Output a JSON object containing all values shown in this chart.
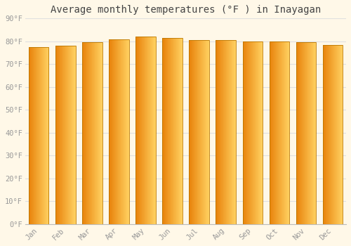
{
  "title": "Average monthly temperatures (°F ) in Inayagan",
  "months": [
    "Jan",
    "Feb",
    "Mar",
    "Apr",
    "May",
    "Jun",
    "Jul",
    "Aug",
    "Sep",
    "Oct",
    "Nov",
    "Dec"
  ],
  "values": [
    77.5,
    78.0,
    79.5,
    81.0,
    82.0,
    81.5,
    80.5,
    80.5,
    80.0,
    80.0,
    79.5,
    78.5
  ],
  "bar_color_left": "#E8820A",
  "bar_color_right": "#FFD060",
  "bar_edge_color": "#BB7700",
  "background_color": "#FFF8E8",
  "grid_color": "#E0E0E0",
  "ylim": [
    0,
    90
  ],
  "yticks": [
    0,
    10,
    20,
    30,
    40,
    50,
    60,
    70,
    80,
    90
  ],
  "ytick_labels": [
    "0°F",
    "10°F",
    "20°F",
    "30°F",
    "40°F",
    "50°F",
    "60°F",
    "70°F",
    "80°F",
    "90°F"
  ],
  "title_fontsize": 10,
  "tick_fontsize": 7.5,
  "font_family": "monospace",
  "bar_width": 0.75,
  "n_gradient_steps": 50
}
